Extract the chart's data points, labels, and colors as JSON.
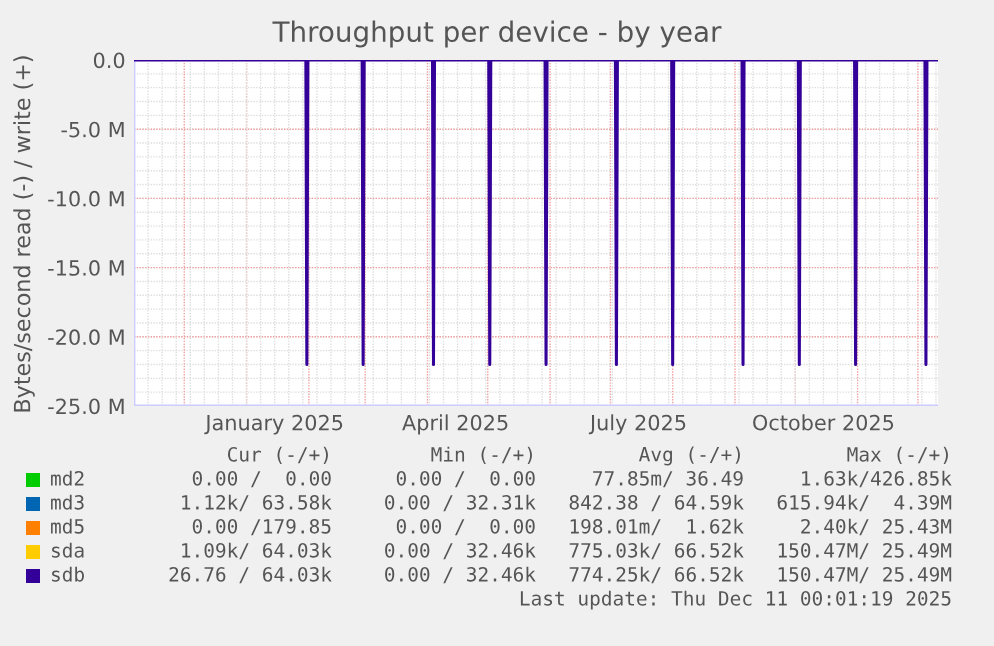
{
  "chart_data": {
    "type": "line",
    "title": "Throughput per device - by year",
    "ylabel": "Bytes/second read (-) / write (+)",
    "xlim": [
      "2024-11-06",
      "2025-12-11"
    ],
    "ylim": [
      -25000000,
      0
    ],
    "yticks": [
      {
        "value": 0,
        "label": "0.0"
      },
      {
        "value": -5000000,
        "label": "-5.0 M"
      },
      {
        "value": -10000000,
        "label": "-10.0 M"
      },
      {
        "value": -15000000,
        "label": "-15.0 M"
      },
      {
        "value": -20000000,
        "label": "-20.0 M"
      },
      {
        "value": -25000000,
        "label": "-25.0 M"
      }
    ],
    "xticks": [
      {
        "value": "2025-01-15",
        "label": "January 2025"
      },
      {
        "value": "2025-04-15",
        "label": "April 2025"
      },
      {
        "value": "2025-07-15",
        "label": "July 2025"
      },
      {
        "value": "2025-10-15",
        "label": "October 2025"
      }
    ],
    "grid": true,
    "legend": "bottom",
    "marker": "none",
    "line_style": "solid",
    "series": [
      {
        "name": "md2",
        "color": "#00cc00"
      },
      {
        "name": "md3",
        "color": "#0066b3"
      },
      {
        "name": "md5",
        "color": "#ff8000"
      },
      {
        "name": "sda",
        "color": "#ffcc00"
      },
      {
        "name": "sdb",
        "color": "#330099",
        "x": [
          "2024-11-06",
          "2025-01-30T12:00",
          "2025-01-31T00:00",
          "2025-01-31T12:00",
          "2025-02-27T12:00",
          "2025-02-28T00:00",
          "2025-02-28T12:00",
          "2025-04-03T12:00",
          "2025-04-04T00:00",
          "2025-04-04T12:00",
          "2025-05-01T12:00",
          "2025-05-02T00:00",
          "2025-05-02T12:00",
          "2025-05-29T12:00",
          "2025-05-30T00:00",
          "2025-05-30T12:00",
          "2025-07-03T12:00",
          "2025-07-04T00:00",
          "2025-07-04T12:00",
          "2025-07-31T12:00",
          "2025-08-01T00:00",
          "2025-08-01T12:00",
          "2025-09-04T12:00",
          "2025-09-05T00:00",
          "2025-09-05T12:00",
          "2025-10-02T12:00",
          "2025-10-03T00:00",
          "2025-10-03T12:00",
          "2025-10-30T12:00",
          "2025-10-31T00:00",
          "2025-10-31T12:00",
          "2025-12-04T12:00",
          "2025-12-05T00:00",
          "2025-12-05T12:00",
          "2025-12-11"
        ],
        "values": [
          0,
          0,
          -22000000,
          0,
          0,
          -22000000,
          0,
          0,
          -22000000,
          0,
          0,
          -22000000,
          0,
          0,
          -22000000,
          0,
          0,
          -22000000,
          0,
          0,
          -22000000,
          0,
          0,
          -22000000,
          0,
          0,
          -22000000,
          0,
          0,
          -22000000,
          0,
          0,
          -22000000,
          0,
          0
        ]
      }
    ],
    "annotations": [
      "Cur (-/+)",
      "Min (-/+)",
      "Avg (-/+)",
      "Max (-/+)",
      "0.00 /  0.00",
      "0.00 /  0.00",
      "77.85m/ 36.49",
      "1.63k/426.85k",
      "1.12k/ 63.58k",
      "0.00 / 32.31k",
      "842.38 / 64.59k",
      "615.94k/  4.39M",
      "0.00 /179.85",
      "0.00 /  0.00",
      "198.01m/  1.62k",
      "2.40k/ 25.43M",
      "1.09k/ 64.03k",
      "0.00 / 32.46k",
      "775.03k/ 66.52k",
      "150.47M/ 25.49M",
      "26.76 / 64.03k",
      "0.00 / 32.46k",
      "774.25k/ 66.52k",
      "150.47M/ 25.49M",
      "Last update: Thu Dec 11 00:01:19 2025"
    ]
  }
}
